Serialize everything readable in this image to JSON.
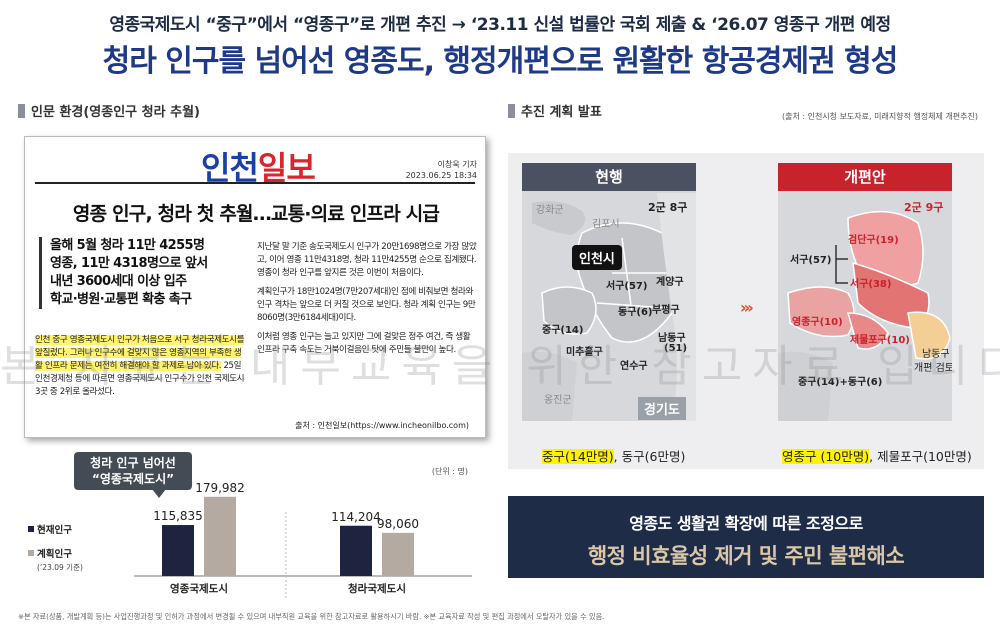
{
  "header": {
    "subtitle": "영종국제도시 “중구”에서 “영종구”로 개편 추진 → ‘23.11 신설 법률안 국회 제출 & ‘26.07 영종구 개편 예정",
    "title": "청라 인구를 넘어선 영종도, 행정개편으로 원활한 항공경제권 형성"
  },
  "left_section": {
    "title": "인문 환경(영종인구 청라 추월)"
  },
  "right_section": {
    "title": "추진 계획 발표",
    "source": "(출처 : 인천시청 보도자료, 미래지향적 행정체제 개편추진)"
  },
  "news": {
    "logo_part1": "인천",
    "logo_part2": "일보",
    "reporter": "이창욱 기자",
    "date": "2023.06.25 18:34",
    "headline": "영종 인구, 청라 첫 추월…교통·의료 인프라 시급",
    "lead": [
      "올해 5월 청라 11만 4255명",
      "영종, 11만 4318명으로 앞서",
      "내년 3600세대 이상 입주",
      "학교·병원·교통편 확충 촉구"
    ],
    "body_left_highlight": "인천 중구 영종국제도시 인구가 처음으로 서구 청라국제도시를 앞질렀다. 그러나 인구수에 걸맞지 않은 영종지역의 부족한 생활 인프라 문제는 여전히 해결해야 할 과제로 남아 있다.",
    "body_left_rest": "25일 인천경제청 등에 따르면 영종국제도시 인구수가 인천 국제도시 3곳 중 2위로 올라섰다.",
    "body_right": [
      "지난달 말 기준 송도국제도시 인구가 20만1698명으로 가장 많았고, 이어 영종 11만4318명, 청라 11만4255명 순으로 집계됐다. 영종이 청라 인구를 앞지른 것은 이번이 처음이다.",
      "계획인구가 18만1024명(7만207세대)인 점에 비춰보면 청라와 인구 격차는 앞으로 더 커질 것으로 보인다. 청라 계획 인구는 9만8060명(3만6184세대)이다.",
      "이처럼 영종 인구는 늘고 있지만 그에 걸맞은 정주 여건, 즉 생활 인프라 구축 속도는 거북이걸음인 탓에 주민들 불만이 높다."
    ],
    "credit": "출처 : 인천일보(https://www.incheonilbo.com)"
  },
  "chart_callout": [
    "청라 인구 넘어선",
    "“영종국제도시”"
  ],
  "chart_unit": "(단위 : 명)",
  "legend": {
    "current": "현재인구",
    "planned": "계획인구",
    "planned_note": "(‘23.09 기준)"
  },
  "chart_data": {
    "type": "bar",
    "categories": [
      "영종국제도시",
      "청라국제도시"
    ],
    "series": [
      {
        "name": "현재인구",
        "values": [
          115835,
          114204
        ],
        "color": "#1e2440"
      },
      {
        "name": "계획인구",
        "values": [
          179982,
          98060
        ],
        "color": "#b5aaa1"
      }
    ],
    "value_labels": [
      [
        "115,835",
        "179,982"
      ],
      [
        "114,204",
        "98,060"
      ]
    ],
    "ylim": [
      0,
      200000
    ]
  },
  "map": {
    "current_head": "현행",
    "proposed_head": "개편안",
    "current_count": "2군 8구",
    "proposed_count": "2군 9구",
    "incheon": "인천시",
    "gyeonggi": "경기도",
    "left_labels": {
      "ganghwa": "강화군",
      "gimpo": "김포시",
      "seogu": "서구(57)",
      "gyeyang": "계양구",
      "donggu": "동구(6)",
      "bupyeong": "부평구",
      "junggu": "중구(14)",
      "michuhol": "미추홀구",
      "namdong": "남동구",
      "namdong_n": "(51)",
      "yeonsu": "연수구",
      "ongjin": "옹진군"
    },
    "right_labels": {
      "geomdan": "검단구(19)",
      "seogu57": "서구(57)",
      "seogu38": "서구(38)",
      "yeongjong": "영종구(10)",
      "jemulpo": "제물포구(10)",
      "namdong": "남동구",
      "namdong_review": "개편 검토",
      "merged": "중구(14)+동구(6)"
    },
    "left_caption_hl": "중구(14만명)",
    "left_caption_rest": ", 동구(6만명)",
    "right_caption_hl": "영종구 (10만명)",
    "right_caption_rest": ", 제물포구(10만명)"
  },
  "banner": {
    "line1": "영종도 생활권 확장에 따른 조정으로",
    "line2": "행정 비효율성 제거 및 주민 불편해소"
  },
  "watermark": "본 자료는 내부교육을 위한 참고자료 입니다",
  "footer": "※본 자료(상품, 개발계획 등)는 사업진행과정 및 인허가 과정에서 변경될 수 있으며 내부직원 교육을 위한 참고자료로 활용하시기 바람. ※본 교육자료 작성 및 편집 과정에서 오탈자가 있을 수 있음."
}
